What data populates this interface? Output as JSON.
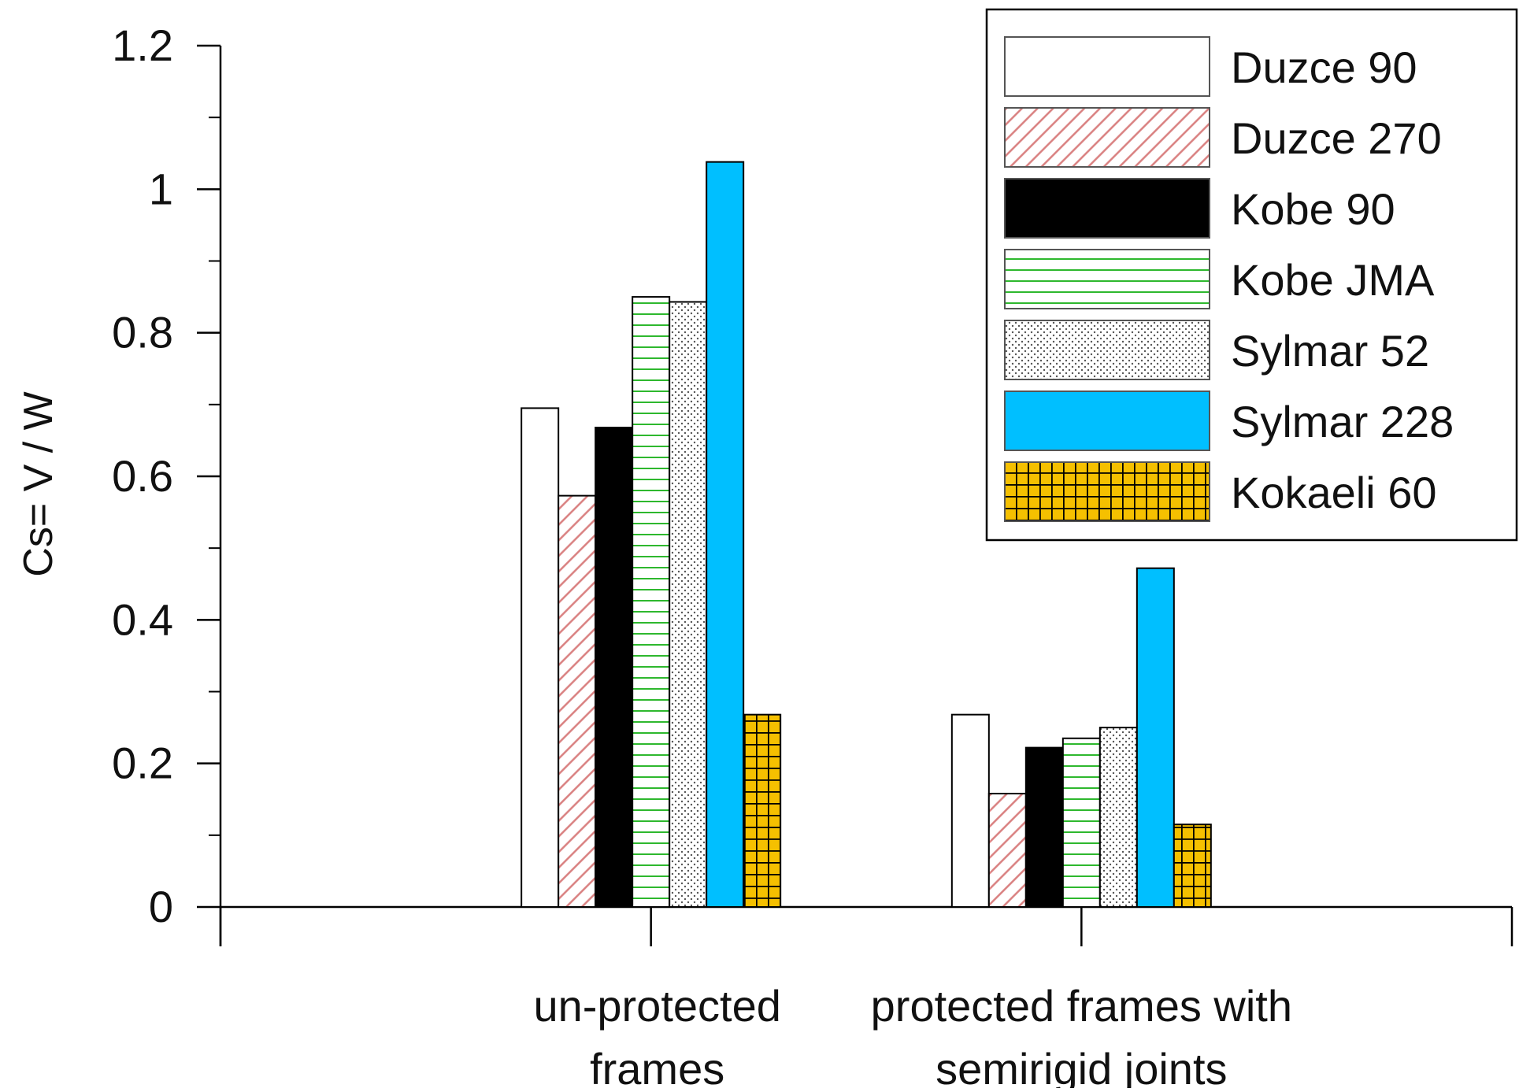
{
  "chart_data": {
    "type": "bar",
    "title": "",
    "xlabel": "",
    "ylabel": "Cs= V / W",
    "ylim": [
      0,
      1.2
    ],
    "yticks": [
      0,
      0.2,
      0.4,
      0.6,
      0.8,
      1,
      1.2
    ],
    "ytick_labels": [
      "0",
      "0.2",
      "0.4",
      "0.6",
      "0.8",
      "1",
      "1.2"
    ],
    "categories": [
      {
        "lines": [
          "",
          ""
        ]
      },
      {
        "lines": [
          "un-protected",
          "frames"
        ]
      },
      {
        "lines": [
          "protected frames with",
          "semirigid joints"
        ]
      },
      {
        "lines": [
          "",
          ""
        ]
      }
    ],
    "legend_position": "top-right",
    "grid": false,
    "series": [
      {
        "name": "Duzce 90",
        "pattern": "solid-white",
        "color": "#ffffff",
        "values": [
          null,
          0.695,
          0.268,
          null
        ]
      },
      {
        "name": "Duzce 270",
        "pattern": "diagonal-hatch",
        "color": "#d98080",
        "values": [
          null,
          0.573,
          0.158,
          null
        ]
      },
      {
        "name": "Kobe 90",
        "pattern": "solid-black",
        "color": "#000000",
        "values": [
          null,
          0.668,
          0.222,
          null
        ]
      },
      {
        "name": "Kobe JMA",
        "pattern": "horizontal-lines",
        "color": "#2eb82e",
        "values": [
          null,
          0.85,
          0.235,
          null
        ]
      },
      {
        "name": "Sylmar 52",
        "pattern": "dots",
        "color": "#555555",
        "values": [
          null,
          0.843,
          0.25,
          null
        ]
      },
      {
        "name": "Sylmar 228",
        "pattern": "solid-cyan",
        "color": "#00bfff",
        "values": [
          null,
          1.038,
          0.472,
          null
        ]
      },
      {
        "name": "Kokaeli 60",
        "pattern": "grid",
        "color": "#f5c000",
        "values": [
          null,
          0.268,
          0.115,
          null
        ]
      }
    ]
  }
}
